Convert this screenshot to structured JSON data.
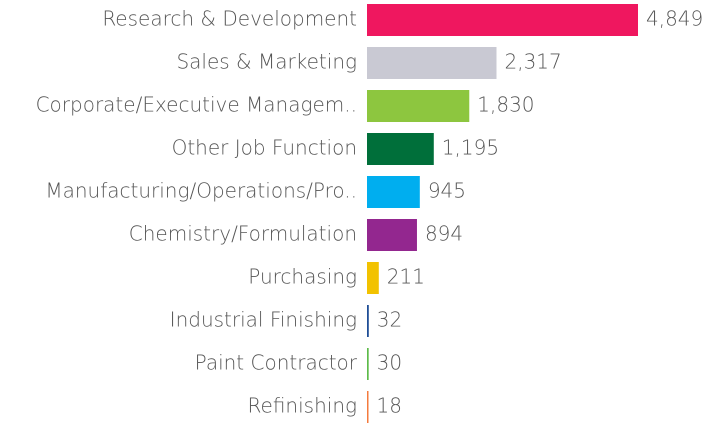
{
  "chart_data": {
    "type": "bar",
    "orientation": "horizontal",
    "categories": [
      "Research & Development",
      "Sales & Marketing",
      "Corporate/Executive Managem..",
      "Other Job Function",
      "Manufacturing/Operations/Pro..",
      "Chemistry/Formulation",
      "Purchasing",
      "Industrial Finishing",
      "Paint Contractor",
      "Refinishing"
    ],
    "values": [
      4849,
      2317,
      1830,
      1195,
      945,
      894,
      211,
      32,
      30,
      18
    ],
    "value_labels": [
      "4,849",
      "2,317",
      "1,830",
      "1,195",
      "945",
      "894",
      "211",
      "32",
      "30",
      "18"
    ],
    "colors": [
      "#ef175f",
      "#c9c9d3",
      "#8dc63f",
      "#006f3a",
      "#00aeef",
      "#93278f",
      "#f2c200",
      "#1f4e96",
      "#5dbb4a",
      "#f47b3d"
    ]
  }
}
